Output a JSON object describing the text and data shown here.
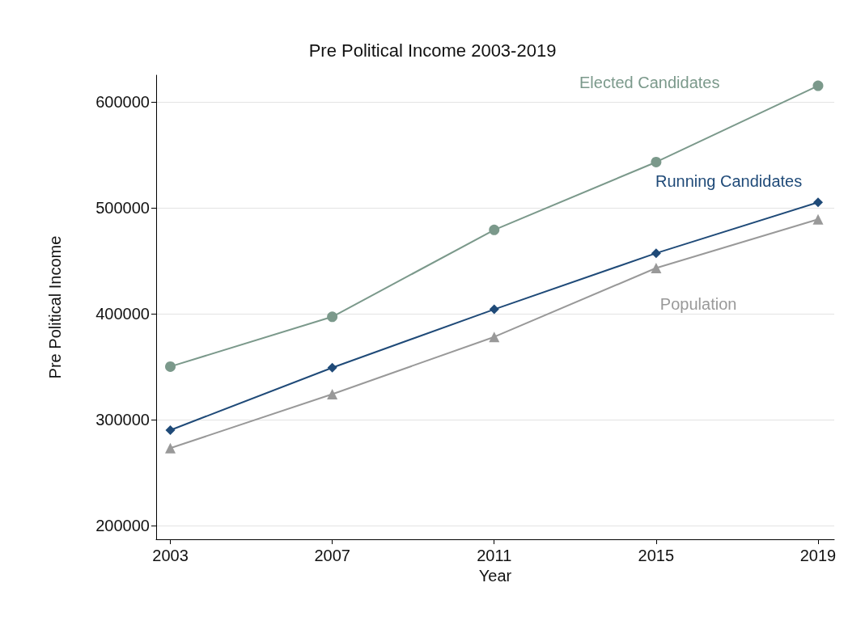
{
  "chart_data": {
    "type": "line",
    "title": "Pre Political Income 2003-2019",
    "xlabel": "Year",
    "ylabel": "Pre Political Income",
    "x": [
      2003,
      2007,
      2011,
      2015,
      2019
    ],
    "series": [
      {
        "name": "Elected Candidates",
        "color": "#7b998b",
        "marker": "circle",
        "values": [
          350000,
          397000,
          479000,
          543000,
          615000
        ]
      },
      {
        "name": "Running Candidates",
        "color": "#1f4a78",
        "marker": "diamond",
        "values": [
          290000,
          349000,
          404000,
          457000,
          505000
        ]
      },
      {
        "name": "Population",
        "color": "#999999",
        "marker": "triangle",
        "values": [
          273000,
          324000,
          378000,
          443000,
          489000
        ]
      }
    ],
    "xlim": [
      2002.65,
      2019.4
    ],
    "xticks": [
      2003,
      2007,
      2011,
      2015,
      2019
    ],
    "ylim": [
      187000,
      625000
    ],
    "yticks": [
      200000,
      300000,
      400000,
      500000,
      600000
    ],
    "grid": "y",
    "legend": false
  }
}
